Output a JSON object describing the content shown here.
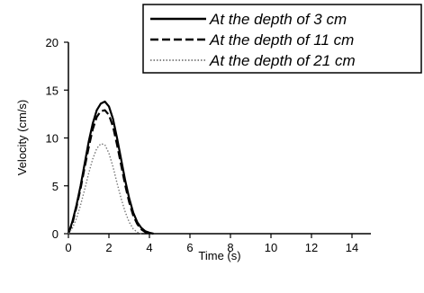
{
  "chart_data": {
    "type": "line",
    "xlabel": "Time (s)",
    "ylabel": "Velocity (cm/s)",
    "xlim": [
      0,
      15
    ],
    "ylim": [
      0,
      20
    ],
    "x_ticks": [
      "0",
      "2",
      "4",
      "6",
      "8",
      "10",
      "12",
      "14"
    ],
    "y_ticks": [
      "0",
      "5",
      "10",
      "15",
      "20"
    ],
    "grid": false,
    "legend": "top-right, boxed",
    "series": [
      {
        "name": "At the depth of 3 cm",
        "style": "solid",
        "x": [
          0,
          0.2,
          0.4,
          0.6,
          0.8,
          1.0,
          1.2,
          1.4,
          1.6,
          1.8,
          2.0,
          2.2,
          2.4,
          2.6,
          2.8,
          3.0,
          3.2,
          3.4,
          3.6,
          3.8,
          4.0,
          4.2
        ],
        "y": [
          0,
          1.3,
          3.0,
          5.0,
          7.3,
          9.6,
          11.5,
          12.9,
          13.6,
          13.8,
          13.3,
          12.0,
          10.0,
          7.8,
          5.6,
          3.7,
          2.2,
          1.2,
          0.6,
          0.25,
          0.1,
          0
        ]
      },
      {
        "name": "At the depth of 11 cm",
        "style": "dashed",
        "x": [
          0,
          0.2,
          0.4,
          0.6,
          0.8,
          1.0,
          1.2,
          1.4,
          1.6,
          1.8,
          2.0,
          2.2,
          2.4,
          2.6,
          2.8,
          3.0,
          3.2,
          3.4,
          3.6,
          3.8,
          4.0
        ],
        "y": [
          0,
          1.1,
          2.8,
          4.7,
          6.9,
          9.0,
          10.9,
          12.2,
          12.8,
          12.9,
          12.4,
          11.2,
          9.3,
          7.2,
          5.1,
          3.3,
          1.9,
          1.0,
          0.45,
          0.15,
          0
        ]
      },
      {
        "name": "At the depth of 21 cm",
        "style": "dotted",
        "x": [
          0,
          0.2,
          0.4,
          0.6,
          0.8,
          1.0,
          1.2,
          1.4,
          1.6,
          1.8,
          2.0,
          2.2,
          2.4,
          2.6,
          2.8,
          3.0,
          3.2,
          3.4,
          3.6
        ],
        "y": [
          0,
          0.6,
          1.6,
          3.0,
          4.6,
          6.3,
          7.8,
          8.9,
          9.4,
          9.3,
          8.4,
          7.0,
          5.3,
          3.7,
          2.3,
          1.2,
          0.5,
          0.15,
          0
        ]
      }
    ]
  }
}
